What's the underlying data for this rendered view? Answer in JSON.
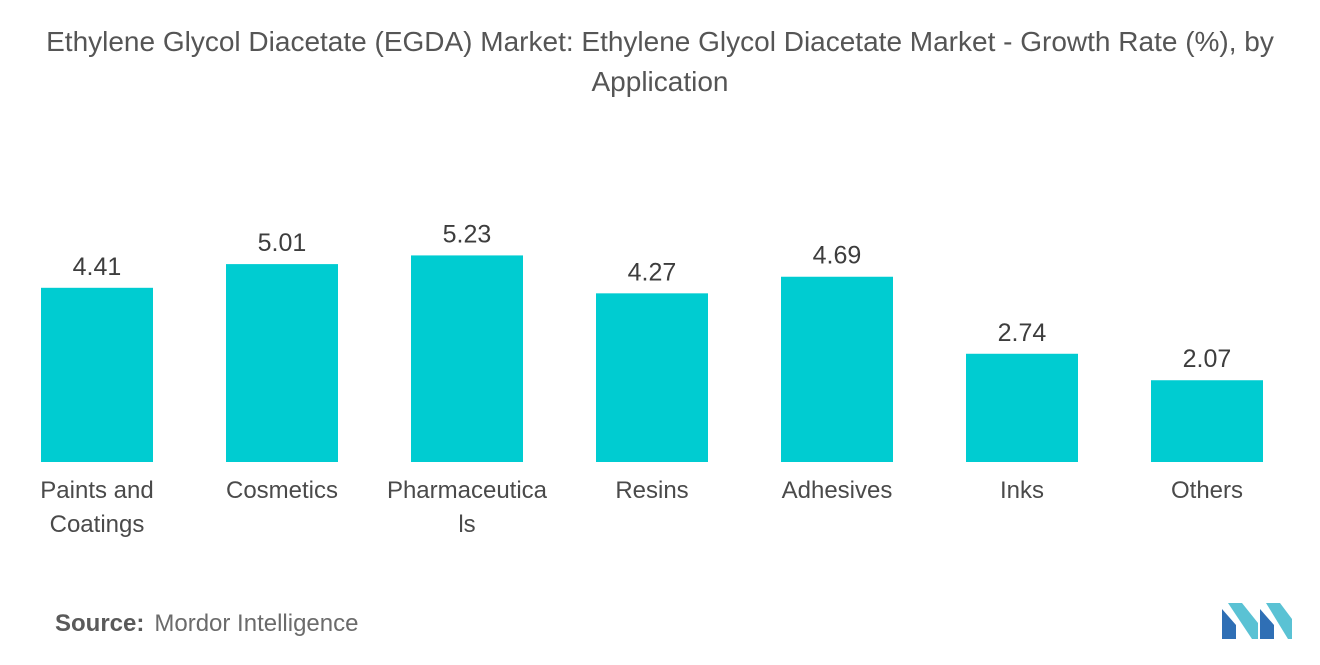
{
  "title": "Ethylene Glycol Diacetate (EGDA) Market: Ethylene Glycol Diacetate Market - Growth Rate (%), by Application",
  "source": {
    "label": "Source:",
    "value": "Mordor Intelligence"
  },
  "chart_data": {
    "type": "bar",
    "title": "Ethylene Glycol Diacetate (EGDA) Market: Ethylene Glycol Diacetate Market - Growth Rate (%), by Application",
    "categories": [
      [
        "Paints and",
        "Coatings"
      ],
      [
        "Cosmetics"
      ],
      [
        "Pharmaceutica",
        "ls"
      ],
      [
        "Resins"
      ],
      [
        "Adhesives"
      ],
      [
        "Inks"
      ],
      [
        "Others"
      ]
    ],
    "values": [
      4.41,
      5.01,
      5.23,
      4.27,
      4.69,
      2.74,
      2.07
    ],
    "value_labels": [
      "4.41",
      "5.01",
      "5.23",
      "4.27",
      "4.69",
      "2.74",
      "2.07"
    ],
    "xlabel": "",
    "ylabel": "",
    "ylim": [
      0,
      6
    ],
    "grid": false,
    "color": "#00ccd1"
  }
}
